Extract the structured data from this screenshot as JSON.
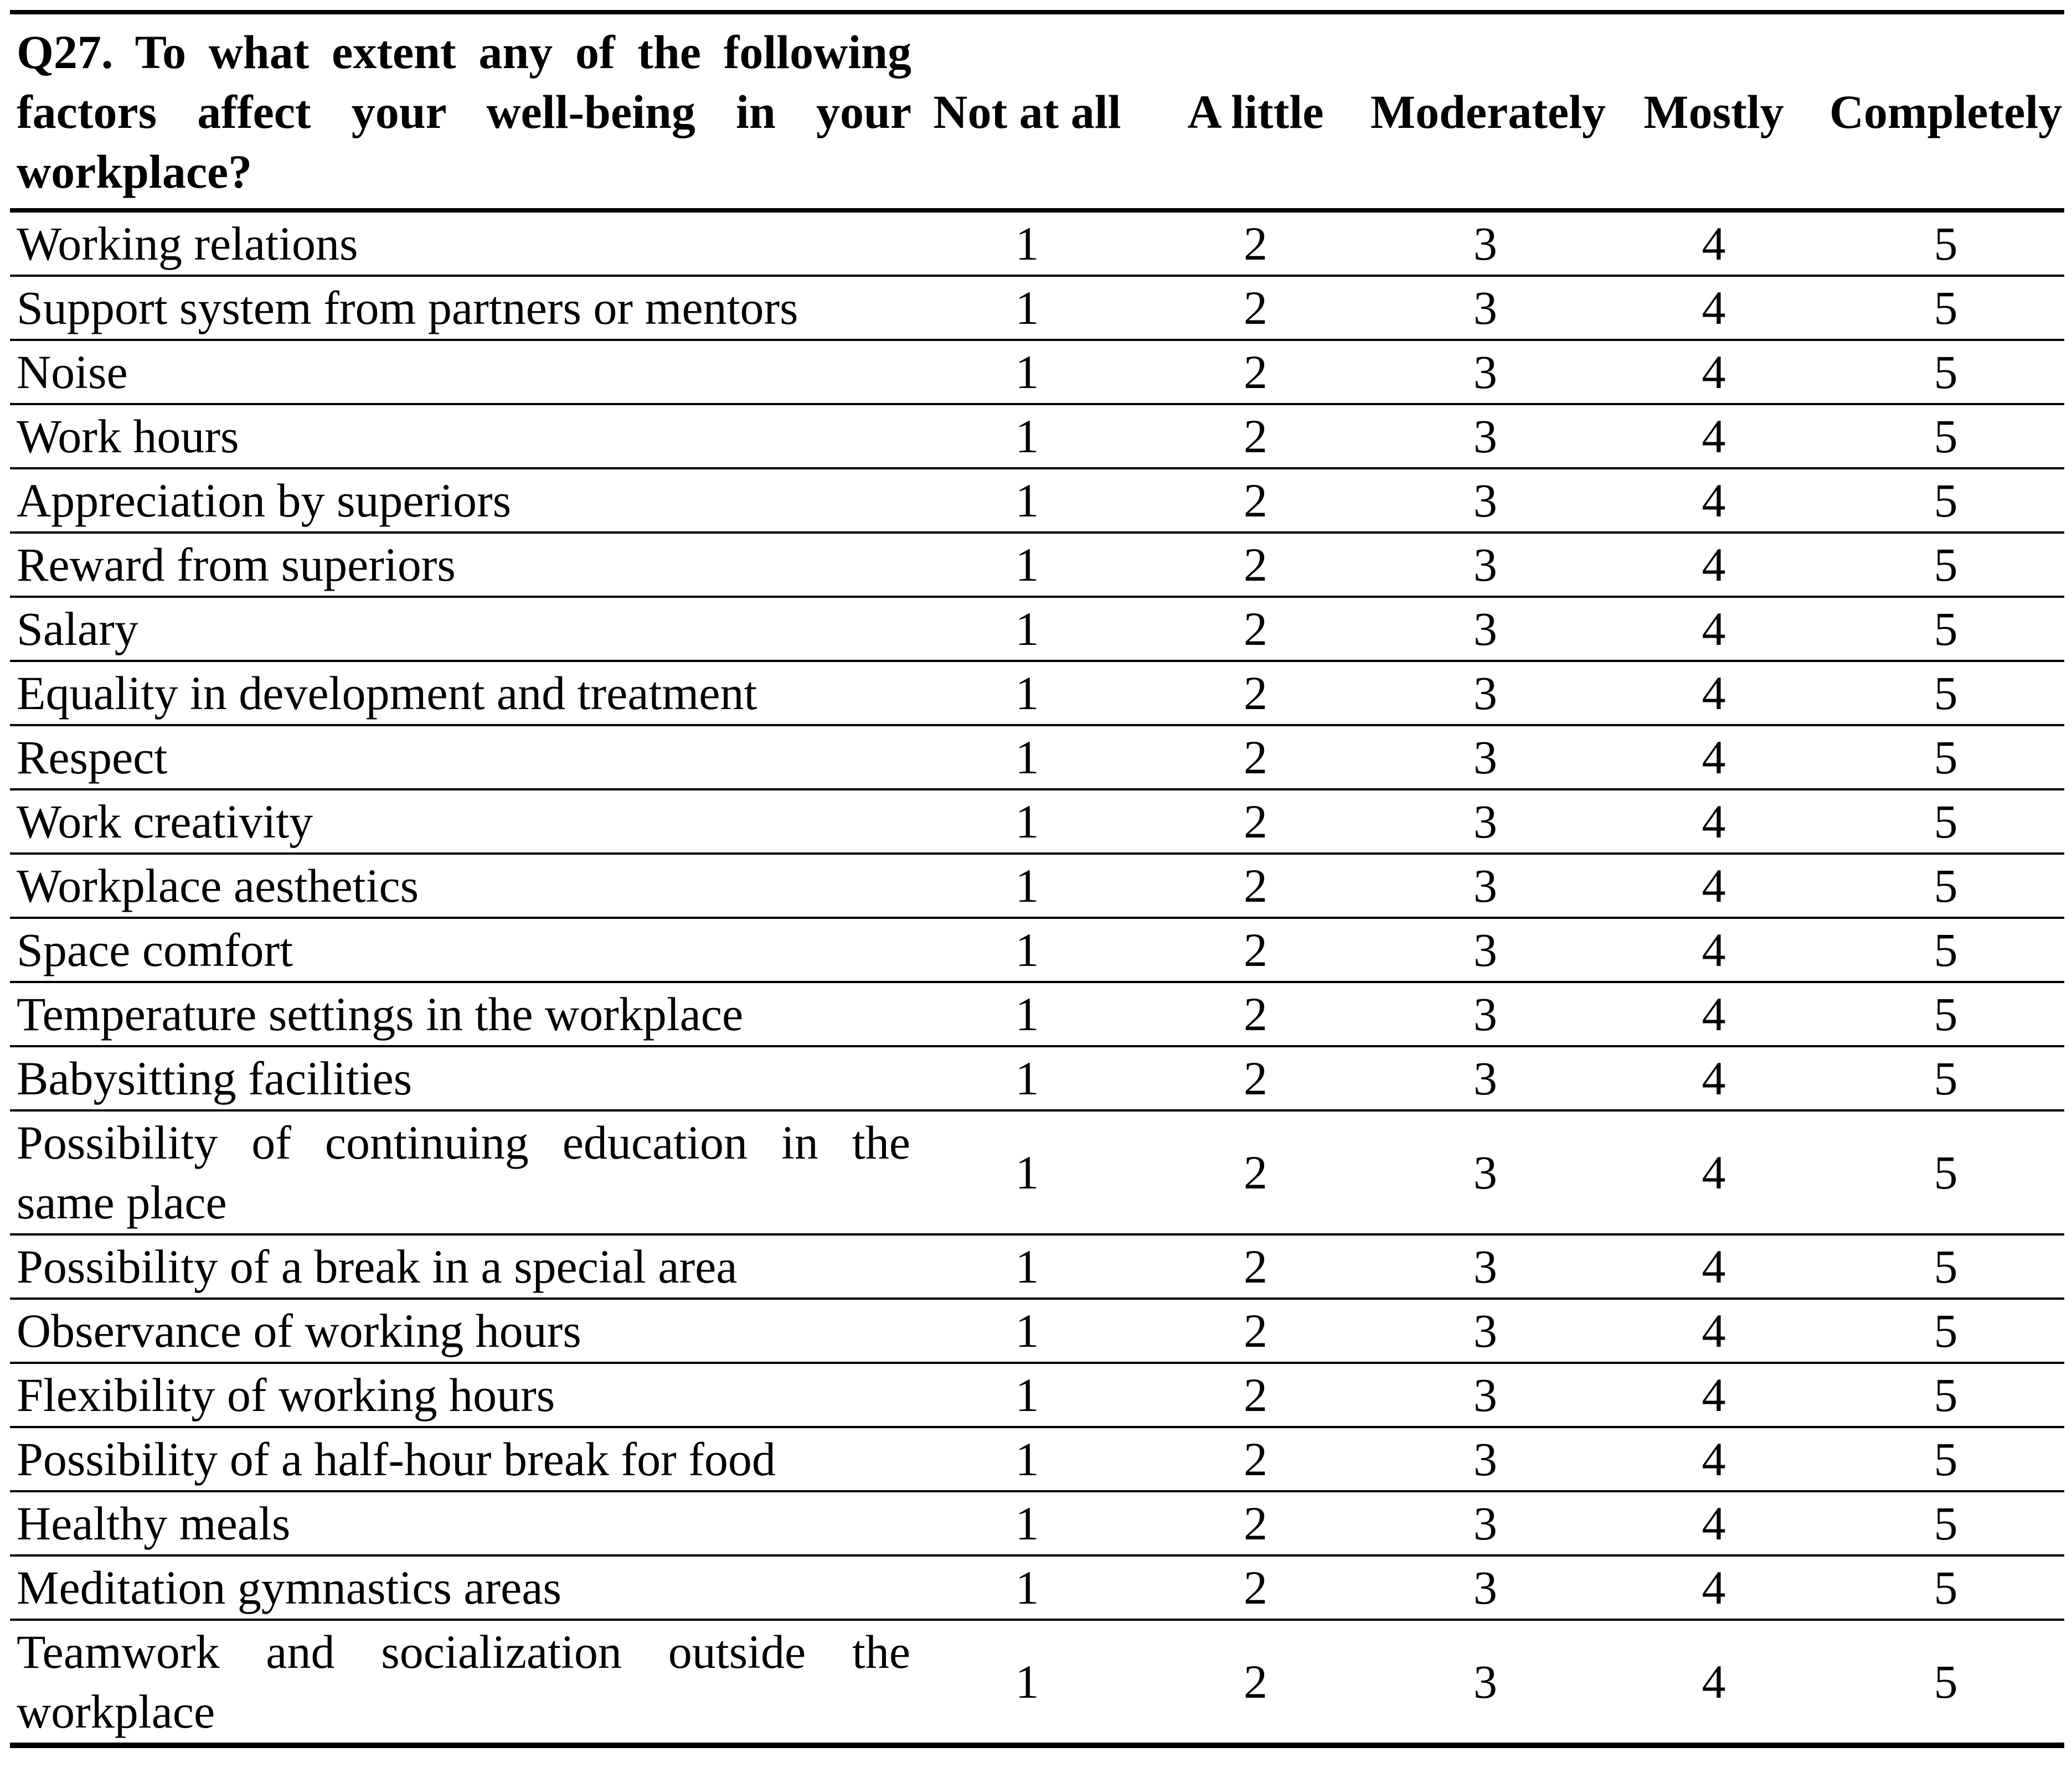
{
  "colors": {
    "background": "#ffffff",
    "text": "#000000",
    "border": "#000000"
  },
  "table": {
    "question_lines": [
      "Q27. To what extent any of the following",
      "factors affect your well-being in your",
      "workplace?"
    ],
    "question": "Q27. To what extent any of the following factors affect your well-being in your workplace?",
    "columns": [
      "Not at all",
      "A little",
      "Moderately",
      "Mostly",
      "Completely"
    ],
    "rows": [
      {
        "label": "Working relations",
        "values": [
          "1",
          "2",
          "3",
          "4",
          "5"
        ]
      },
      {
        "label": "Support system from partners or mentors",
        "values": [
          "1",
          "2",
          "3",
          "4",
          "5"
        ]
      },
      {
        "label": "Noise",
        "values": [
          "1",
          "2",
          "3",
          "4",
          "5"
        ]
      },
      {
        "label": "Work hours",
        "values": [
          "1",
          "2",
          "3",
          "4",
          "5"
        ]
      },
      {
        "label": "Appreciation by superiors",
        "values": [
          "1",
          "2",
          "3",
          "4",
          "5"
        ]
      },
      {
        "label": "Reward from superiors",
        "values": [
          "1",
          "2",
          "3",
          "4",
          "5"
        ]
      },
      {
        "label": "Salary",
        "values": [
          "1",
          "2",
          "3",
          "4",
          "5"
        ]
      },
      {
        "label": "Equality in development and treatment",
        "values": [
          "1",
          "2",
          "3",
          "4",
          "5"
        ]
      },
      {
        "label": "Respect",
        "values": [
          "1",
          "2",
          "3",
          "4",
          "5"
        ]
      },
      {
        "label": "Work creativity",
        "values": [
          "1",
          "2",
          "3",
          "4",
          "5"
        ]
      },
      {
        "label": "Workplace aesthetics",
        "values": [
          "1",
          "2",
          "3",
          "4",
          "5"
        ]
      },
      {
        "label": "Space comfort",
        "values": [
          "1",
          "2",
          "3",
          "4",
          "5"
        ]
      },
      {
        "label": "Temperature settings in the workplace",
        "values": [
          "1",
          "2",
          "3",
          "4",
          "5"
        ]
      },
      {
        "label": "Babysitting facilities",
        "values": [
          "1",
          "2",
          "3",
          "4",
          "5"
        ]
      },
      {
        "label": "Possibility of continuing education in the same place",
        "lines": [
          "Possibility of continuing education in the",
          "same place"
        ],
        "values": [
          "1",
          "2",
          "3",
          "4",
          "5"
        ]
      },
      {
        "label": "Possibility of a break in a special area",
        "values": [
          "1",
          "2",
          "3",
          "4",
          "5"
        ]
      },
      {
        "label": "Observance of working hours",
        "values": [
          "1",
          "2",
          "3",
          "4",
          "5"
        ]
      },
      {
        "label": "Flexibility of working hours",
        "values": [
          "1",
          "2",
          "3",
          "4",
          "5"
        ]
      },
      {
        "label": "Possibility of a half-hour break for food",
        "values": [
          "1",
          "2",
          "3",
          "4",
          "5"
        ]
      },
      {
        "label": "Healthy meals",
        "values": [
          "1",
          "2",
          "3",
          "4",
          "5"
        ]
      },
      {
        "label": "Meditation gymnastics areas",
        "values": [
          "1",
          "2",
          "3",
          "4",
          "5"
        ]
      },
      {
        "label": "Teamwork and socialization outside the workplace",
        "lines": [
          "Teamwork and socialization outside the",
          "workplace"
        ],
        "values": [
          "1",
          "2",
          "3",
          "4",
          "5"
        ]
      }
    ]
  }
}
